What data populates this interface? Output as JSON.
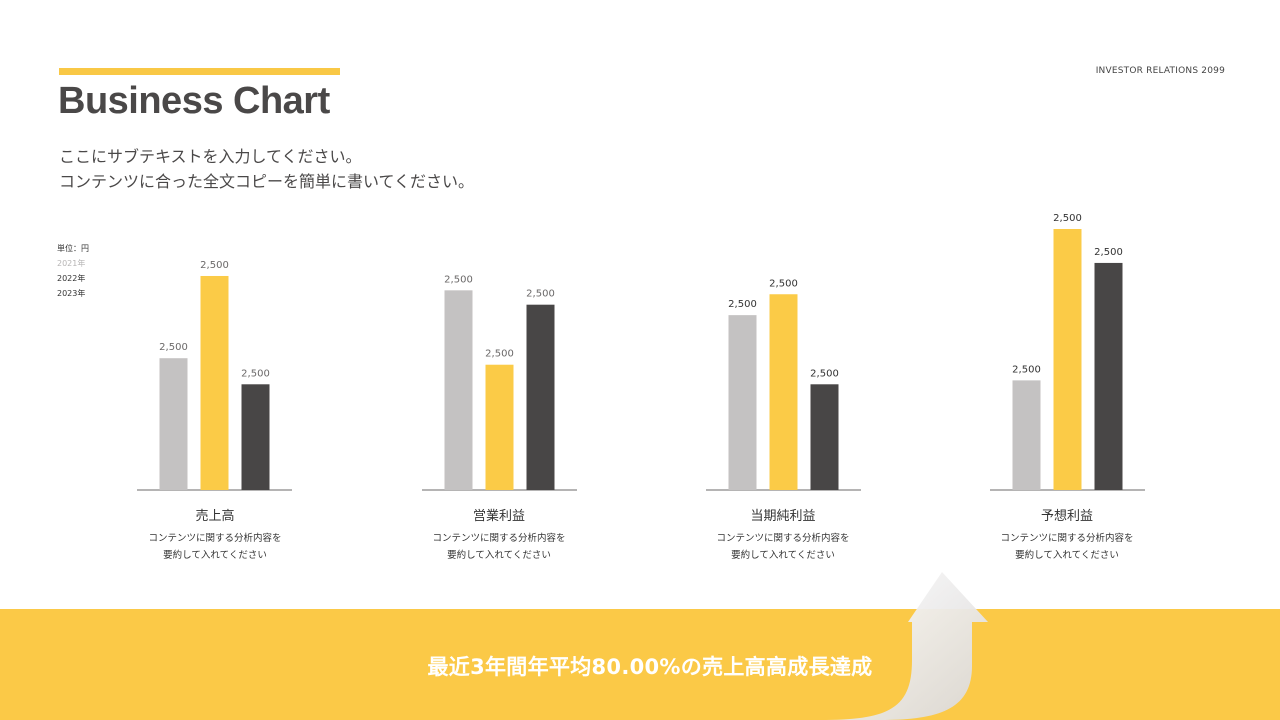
{
  "header": {
    "title": "Business Chart",
    "tag": "INVESTOR RELATIONS 2099",
    "subtitle_lines": [
      "ここにサブテキストを入力してください。",
      "コンテンツに合った全文コピーを簡単に書いてください。"
    ]
  },
  "legend": {
    "unit": "単位：円",
    "items": [
      "2021年",
      "2022年",
      "2023年"
    ]
  },
  "colors": {
    "y2021": "#c4c2c2",
    "y2022": "#fbcb47",
    "y2023": "#484646",
    "accent": "#fbc947"
  },
  "chart_data": {
    "type": "bar",
    "unit": "円",
    "series": [
      {
        "name": "2021年",
        "values": [
          2500,
          2500,
          2500,
          2500
        ]
      },
      {
        "name": "2022年",
        "values": [
          2500,
          2500,
          2500,
          2500
        ]
      },
      {
        "name": "2023年",
        "values": [
          2500,
          2500,
          2500,
          2500
        ]
      }
    ],
    "categories": [
      "売上高",
      "営業利益",
      "当期純利益",
      "予想利益"
    ],
    "relative_bar_heights": [
      [
        0.505,
        0.82,
        0.405
      ],
      [
        0.765,
        0.48,
        0.71
      ],
      [
        0.67,
        0.75,
        0.405
      ],
      [
        0.42,
        1.0,
        0.87
      ]
    ]
  },
  "groups": [
    {
      "name": "売上高",
      "desc": "コンテンツに関する分析内容を\n要約して入れてください"
    },
    {
      "name": "営業利益",
      "desc": "コンテンツに関する分析内容を\n要約して入れてください"
    },
    {
      "name": "当期純利益",
      "desc": "コンテンツに関する分析内容を\n要約して入れてください"
    },
    {
      "name": "予想利益",
      "desc": "コンテンツに関する分析内容を\n要約して入れてください"
    }
  ],
  "footer": {
    "headline": "最近3年間年平均80.00%の売上高高成長達成"
  }
}
